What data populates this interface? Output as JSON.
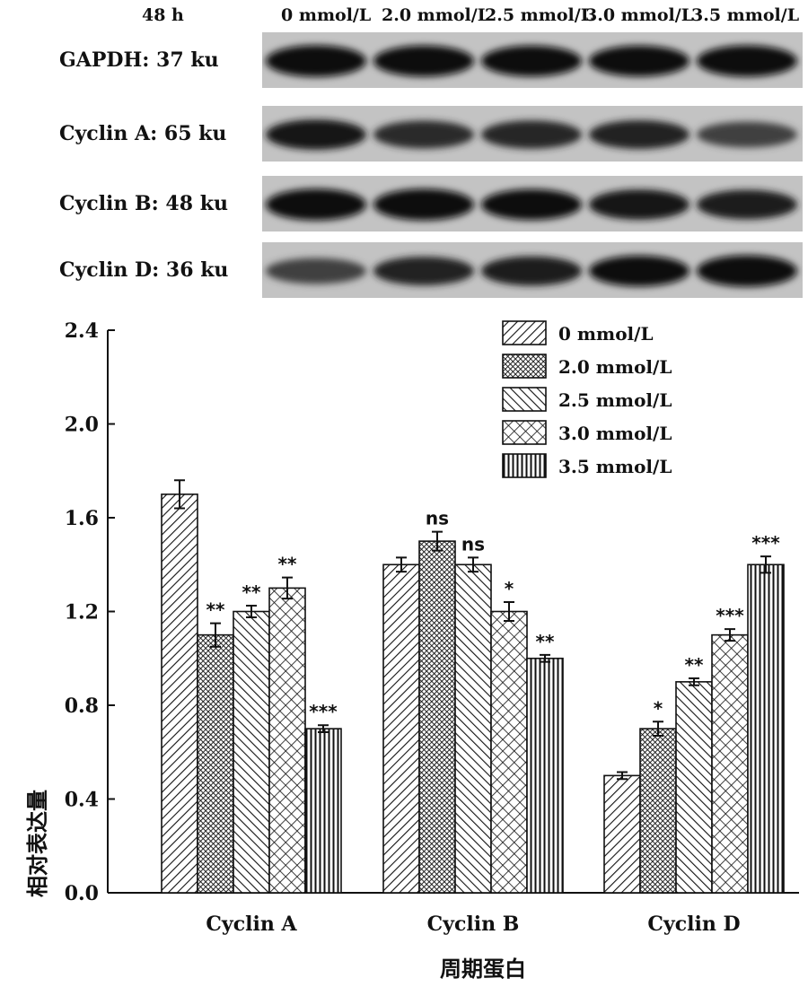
{
  "blot": {
    "time_label": "48 h",
    "concentrations": [
      "0 mmol/L",
      "2.0 mmol/L",
      "2.5 mmol/L",
      "3.0 mmol/L",
      "3.5 mmol/L"
    ],
    "rows": [
      {
        "label": "GAPDH:  37 ku",
        "intensities": [
          0.95,
          0.92,
          0.9,
          0.9,
          0.93
        ]
      },
      {
        "label": "Cyclin A: 65 ku",
        "intensities": [
          0.85,
          0.7,
          0.72,
          0.75,
          0.55
        ]
      },
      {
        "label": "Cyclin B: 48 ku",
        "intensities": [
          0.95,
          0.95,
          0.9,
          0.85,
          0.8
        ]
      },
      {
        "label": "Cyclin D: 36 ku",
        "intensities": [
          0.55,
          0.75,
          0.8,
          0.9,
          0.95
        ]
      }
    ]
  },
  "chart_data": {
    "type": "bar",
    "categories": [
      "Cyclin A",
      "Cyclin B",
      "Cyclin D"
    ],
    "series": [
      {
        "name": "0 mmol/L",
        "pattern": "diag-fwd",
        "values": [
          1.7,
          1.4,
          0.5
        ],
        "errors": [
          0.06,
          0.03,
          0.015
        ],
        "sig": [
          "",
          "",
          ""
        ]
      },
      {
        "name": "2.0 mmol/L",
        "pattern": "dense-check",
        "values": [
          1.1,
          1.5,
          0.7
        ],
        "errors": [
          0.05,
          0.04,
          0.03
        ],
        "sig": [
          "**",
          "ns",
          "*"
        ]
      },
      {
        "name": "2.5 mmol/L",
        "pattern": "diag-back",
        "values": [
          1.2,
          1.4,
          0.9
        ],
        "errors": [
          0.025,
          0.03,
          0.015
        ],
        "sig": [
          "**",
          "ns",
          "**"
        ]
      },
      {
        "name": "3.0 mmol/L",
        "pattern": "crosshatch",
        "values": [
          1.3,
          1.2,
          1.1
        ],
        "errors": [
          0.045,
          0.04,
          0.025
        ],
        "sig": [
          "**",
          "*",
          "***"
        ]
      },
      {
        "name": "3.5 mmol/L",
        "pattern": "vertical",
        "values": [
          0.7,
          1.0,
          1.4
        ],
        "errors": [
          0.015,
          0.015,
          0.035
        ],
        "sig": [
          "***",
          "**",
          "***"
        ]
      }
    ],
    "ylim": [
      0,
      2.4
    ],
    "yticks": [
      0.0,
      0.4,
      0.8,
      1.2,
      1.6,
      2.0,
      2.4
    ],
    "ytick_labels": [
      "0.0",
      "0.4",
      "0.8",
      "1.2",
      "1.6",
      "2.0",
      "2.4"
    ],
    "ylabel": "相对表达量",
    "xlabel": "周期蛋白",
    "legend_position": "top-right",
    "grid": false
  }
}
